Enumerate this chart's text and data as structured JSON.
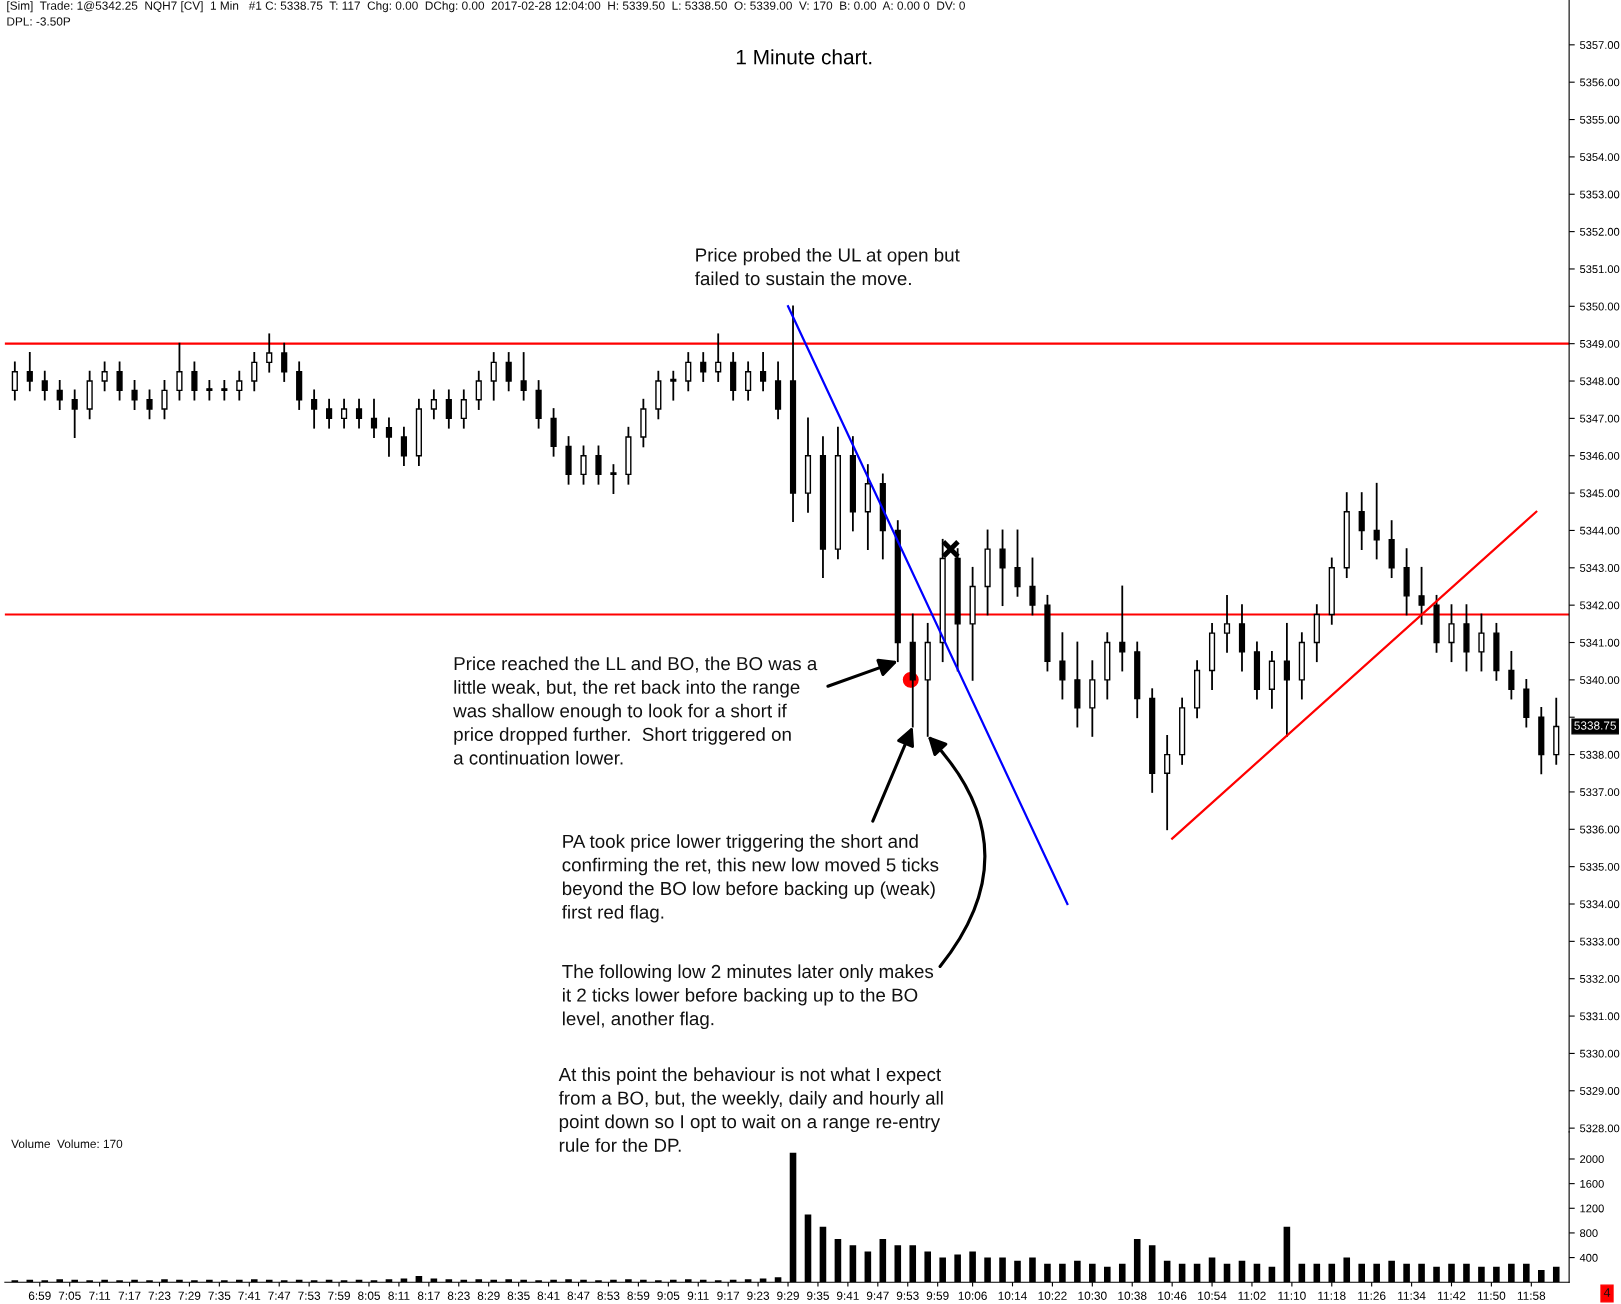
{
  "chart_data": [
    {
      "type": "candlestick",
      "title": "1 Minute chart.",
      "color": "#000000",
      "x": [
        6.9,
        6.95,
        7,
        7.05,
        7.1,
        7.15,
        7.2,
        7.25,
        7.3,
        7.35,
        7.4,
        7.45,
        7.5,
        7.55,
        7.6,
        7.65,
        7.7,
        7.75,
        7.8,
        7.85,
        7.9,
        7.95,
        8,
        8.05,
        8.1,
        8.15,
        8.2,
        8.25,
        8.3,
        8.35,
        8.4,
        8.45,
        8.5,
        8.55,
        8.6,
        8.65,
        8.7,
        8.75,
        8.8,
        8.85,
        8.9,
        8.95,
        9,
        9.05,
        9.1,
        9.15,
        9.2,
        9.25,
        9.3,
        9.35,
        9.4,
        9.45,
        9.5,
        9.55,
        9.6,
        9.65,
        9.7,
        9.75,
        9.8,
        9.85,
        9.9,
        9.95,
        10,
        10.05,
        10.1,
        10.15,
        10.2,
        10.25,
        10.3,
        10.35,
        10.4,
        10.45,
        10.5,
        10.55,
        10.6,
        10.65,
        10.7,
        10.75,
        10.8,
        10.85,
        10.9,
        10.95,
        11,
        11.05,
        11.1,
        11.15,
        11.2,
        11.25,
        11.3,
        11.35,
        11.4,
        11.45,
        11.5,
        11.55,
        11.6,
        11.65,
        11.7,
        11.75,
        11.8,
        11.85,
        11.9,
        11.95,
        12,
        12.05
      ],
      "ohlc": [
        [
          5347.75,
          5348.5,
          5347.5,
          5348.25
        ],
        [
          5348.25,
          5348.75,
          5347.75,
          5348.0
        ],
        [
          5348.0,
          5348.25,
          5347.5,
          5347.75
        ],
        [
          5347.75,
          5348.0,
          5347.25,
          5347.5
        ],
        [
          5347.5,
          5347.75,
          5346.5,
          5347.25
        ],
        [
          5347.25,
          5348.25,
          5347.0,
          5348.0
        ],
        [
          5348.0,
          5348.5,
          5347.75,
          5348.25
        ],
        [
          5348.25,
          5348.5,
          5347.5,
          5347.75
        ],
        [
          5347.75,
          5348.0,
          5347.25,
          5347.5
        ],
        [
          5347.5,
          5347.75,
          5347.0,
          5347.25
        ],
        [
          5347.25,
          5348.0,
          5347.0,
          5347.75
        ],
        [
          5347.75,
          5349.0,
          5347.5,
          5348.25
        ],
        [
          5348.25,
          5348.5,
          5347.5,
          5347.75
        ],
        [
          5347.75,
          5348.0,
          5347.5,
          5347.75
        ],
        [
          5347.75,
          5348.0,
          5347.5,
          5347.75
        ],
        [
          5347.75,
          5348.25,
          5347.5,
          5348.0
        ],
        [
          5348.0,
          5348.75,
          5347.75,
          5348.5
        ],
        [
          5348.5,
          5349.25,
          5348.25,
          5348.75
        ],
        [
          5348.75,
          5349.0,
          5348.0,
          5348.25
        ],
        [
          5348.25,
          5348.5,
          5347.25,
          5347.5
        ],
        [
          5347.5,
          5347.75,
          5346.75,
          5347.25
        ],
        [
          5347.25,
          5347.5,
          5346.75,
          5347.0
        ],
        [
          5347.0,
          5347.5,
          5346.75,
          5347.25
        ],
        [
          5347.25,
          5347.5,
          5346.75,
          5347.0
        ],
        [
          5347.0,
          5347.5,
          5346.5,
          5346.75
        ],
        [
          5346.75,
          5347.0,
          5346.0,
          5346.5
        ],
        [
          5346.5,
          5346.75,
          5345.75,
          5346.0
        ],
        [
          5346.0,
          5347.5,
          5345.75,
          5347.25
        ],
        [
          5347.25,
          5347.75,
          5347.0,
          5347.5
        ],
        [
          5347.5,
          5347.75,
          5346.75,
          5347.0
        ],
        [
          5347.0,
          5347.75,
          5346.75,
          5347.5
        ],
        [
          5347.5,
          5348.25,
          5347.25,
          5348.0
        ],
        [
          5348.0,
          5348.75,
          5347.5,
          5348.5
        ],
        [
          5348.5,
          5348.75,
          5347.75,
          5348.0
        ],
        [
          5348.0,
          5348.75,
          5347.5,
          5347.75
        ],
        [
          5347.75,
          5348.0,
          5346.75,
          5347.0
        ],
        [
          5347.0,
          5347.25,
          5346.0,
          5346.25
        ],
        [
          5346.25,
          5346.5,
          5345.25,
          5345.5
        ],
        [
          5345.5,
          5346.25,
          5345.25,
          5346.0
        ],
        [
          5346.0,
          5346.25,
          5345.25,
          5345.5
        ],
        [
          5345.5,
          5345.75,
          5345.0,
          5345.5
        ],
        [
          5345.5,
          5346.75,
          5345.25,
          5346.5
        ],
        [
          5346.5,
          5347.5,
          5346.25,
          5347.25
        ],
        [
          5347.25,
          5348.25,
          5347.0,
          5348.0
        ],
        [
          5348.0,
          5348.25,
          5347.5,
          5348.0
        ],
        [
          5348.0,
          5348.75,
          5347.75,
          5348.5
        ],
        [
          5348.5,
          5348.75,
          5348.0,
          5348.25
        ],
        [
          5348.25,
          5349.25,
          5348.0,
          5348.5
        ],
        [
          5348.5,
          5348.75,
          5347.5,
          5347.75
        ],
        [
          5347.75,
          5348.5,
          5347.5,
          5348.25
        ],
        [
          5348.25,
          5348.75,
          5347.75,
          5348.0
        ],
        [
          5348.0,
          5348.5,
          5347.0,
          5347.25
        ],
        [
          5348.0,
          5350.0,
          5344.25,
          5345.0
        ],
        [
          5345.0,
          5347.0,
          5344.5,
          5346.0
        ],
        [
          5346.0,
          5346.5,
          5342.75,
          5343.5
        ],
        [
          5343.5,
          5346.75,
          5343.25,
          5346.0
        ],
        [
          5346.0,
          5346.5,
          5344.0,
          5344.5
        ],
        [
          5344.5,
          5345.75,
          5343.5,
          5345.25
        ],
        [
          5345.25,
          5345.5,
          5343.25,
          5344.0
        ],
        [
          5344.0,
          5344.25,
          5340.5,
          5341.0
        ],
        [
          5341.0,
          5341.75,
          5338.75,
          5340.0
        ],
        [
          5340.0,
          5341.5,
          5338.5,
          5341.0
        ],
        [
          5341.0,
          5343.75,
          5340.5,
          5343.25
        ],
        [
          5343.25,
          5343.5,
          5340.25,
          5341.5
        ],
        [
          5341.5,
          5343.0,
          5340.0,
          5342.5
        ],
        [
          5342.5,
          5344.0,
          5341.75,
          5343.5
        ],
        [
          5343.5,
          5344.0,
          5342.0,
          5343.0
        ],
        [
          5343.0,
          5344.0,
          5342.25,
          5342.5
        ],
        [
          5342.5,
          5343.25,
          5341.75,
          5342.0
        ],
        [
          5342.0,
          5342.25,
          5340.25,
          5340.5
        ],
        [
          5340.5,
          5341.25,
          5339.5,
          5340.0
        ],
        [
          5340.0,
          5341.0,
          5338.75,
          5339.25
        ],
        [
          5339.25,
          5340.5,
          5338.5,
          5340.0
        ],
        [
          5340.0,
          5341.25,
          5339.5,
          5341.0
        ],
        [
          5341.0,
          5342.5,
          5340.25,
          5340.75
        ],
        [
          5340.75,
          5341.0,
          5339.0,
          5339.5
        ],
        [
          5339.5,
          5339.75,
          5337.0,
          5337.5
        ],
        [
          5337.5,
          5338.5,
          5336.0,
          5338.0
        ],
        [
          5338.0,
          5339.5,
          5337.75,
          5339.25
        ],
        [
          5339.25,
          5340.5,
          5339.0,
          5340.25
        ],
        [
          5340.25,
          5341.5,
          5339.75,
          5341.25
        ],
        [
          5341.25,
          5342.25,
          5340.75,
          5341.5
        ],
        [
          5341.5,
          5342.0,
          5340.25,
          5340.75
        ],
        [
          5340.75,
          5341.0,
          5339.5,
          5339.75
        ],
        [
          5339.75,
          5340.75,
          5339.25,
          5340.5
        ],
        [
          5340.5,
          5341.5,
          5338.5,
          5340.0
        ],
        [
          5340.0,
          5341.25,
          5339.5,
          5341.0
        ],
        [
          5341.0,
          5342.0,
          5340.5,
          5341.75
        ],
        [
          5341.75,
          5343.25,
          5341.5,
          5343.0
        ],
        [
          5343.0,
          5345.0,
          5342.75,
          5344.5
        ],
        [
          5344.5,
          5345.0,
          5343.5,
          5344.0
        ],
        [
          5344.0,
          5345.25,
          5343.25,
          5343.75
        ],
        [
          5343.75,
          5344.25,
          5342.75,
          5343.0
        ],
        [
          5343.0,
          5343.5,
          5341.75,
          5342.25
        ],
        [
          5342.25,
          5343.0,
          5341.5,
          5342.0
        ],
        [
          5342.0,
          5342.25,
          5340.75,
          5341.0
        ],
        [
          5341.0,
          5342.0,
          5340.5,
          5341.5
        ],
        [
          5341.5,
          5342.0,
          5340.25,
          5340.75
        ],
        [
          5340.75,
          5341.75,
          5340.25,
          5341.25
        ],
        [
          5341.25,
          5341.5,
          5340.0,
          5340.25
        ],
        [
          5340.25,
          5340.75,
          5339.5,
          5339.75
        ],
        [
          5339.75,
          5340.0,
          5338.75,
          5339.0
        ],
        [
          5339.0,
          5339.25,
          5337.5,
          5338.0
        ],
        [
          5338.0,
          5339.5,
          5337.75,
          5338.75
        ]
      ],
      "series": [
        {
          "type": "line",
          "x": [
            9.4833,
            10.4167
          ],
          "values": [
            5350,
            5334
          ],
          "color": "#0000ff"
        },
        {
          "type": "line",
          "x": [
            10.7667,
            11.9833
          ],
          "values": [
            5335.75,
            5344.5
          ],
          "color": "#ff0000"
        },
        {
          "type": "scatter",
          "x": [
            9.8933
          ],
          "values": [
            5340.0
          ],
          "color": "#ff0000",
          "marker": "circle"
        },
        {
          "type": "scatter",
          "x": [
            10.0267
          ],
          "values": [
            5343.5
          ],
          "color": "#000000",
          "marker": "cross"
        }
      ],
      "ref_lines": [
        {
          "axis": "y",
          "value": 5349.0,
          "color": "#ff0000"
        },
        {
          "axis": "y",
          "value": 5341.75,
          "color": "#ff0000"
        }
      ],
      "xlim": [
        6.8667,
        12.093
      ],
      "ylim": [
        5327.9,
        5358.2
      ],
      "yticks": [
        {
          "value": 5328,
          "label": "5328.00"
        },
        {
          "value": 5329,
          "label": "5329.00"
        },
        {
          "value": 5330,
          "label": "5330.00"
        },
        {
          "value": 5331,
          "label": "5331.00"
        },
        {
          "value": 5332,
          "label": "5332.00"
        },
        {
          "value": 5333,
          "label": "5333.00"
        },
        {
          "value": 5334,
          "label": "5334.00"
        },
        {
          "value": 5335,
          "label": "5335.00"
        },
        {
          "value": 5336,
          "label": "5336.00"
        },
        {
          "value": 5337,
          "label": "5337.00"
        },
        {
          "value": 5338,
          "label": "5338.00"
        },
        {
          "value": 5339,
          "label": null
        },
        {
          "value": 5340,
          "label": "5340.00"
        },
        {
          "value": 5341,
          "label": "5341.00"
        },
        {
          "value": 5342,
          "label": "5342.00"
        },
        {
          "value": 5343,
          "label": "5343.00"
        },
        {
          "value": 5344,
          "label": "5344.00"
        },
        {
          "value": 5345,
          "label": "5345.00"
        },
        {
          "value": 5346,
          "label": "5346.00"
        },
        {
          "value": 5347,
          "label": "5347.00"
        },
        {
          "value": 5348,
          "label": "5348.00"
        },
        {
          "value": 5349,
          "label": "5349.00"
        },
        {
          "value": 5350,
          "label": "5350.00"
        },
        {
          "value": 5351,
          "label": "5351.00"
        },
        {
          "value": 5352,
          "label": "5352.00"
        },
        {
          "value": 5353,
          "label": "5353.00"
        },
        {
          "value": 5354,
          "label": "5354.00"
        },
        {
          "value": 5355,
          "label": "5355.00"
        },
        {
          "value": 5356,
          "label": "5356.00"
        },
        {
          "value": 5357,
          "label": "5357.00"
        }
      ],
      "tick_labels": "y",
      "annotations": [
        "[Sim]  Trade: 1@5342.25  NQH7 [CV]  1 Min   #1 C: 5338.75  T: 117  Chg: 0.00  DChg: 0.00  2017-02-28 12:04:00  H: 5339.50  L: 5338.50  O: 5339.00  V: 170  B: 0.00  A: 0.00 0  DV: 0",
        "DPL: -3.50P",
        {
          "text": "Price probed the UL at open but\nfailed to sustain the move.",
          "x": 9.4833,
          "y": 5350
        },
        {
          "text": "Price reached the LL and BO, the BO was a\nlittle weak, but, the ret back into the range\nwas shallow enough to look for a short if\nprice dropped further.  Short triggered on\na continuation lower.",
          "x": 9.85,
          "y": 5340.5
        },
        {
          "text": "PA took price lower triggering the short and\nconfirming the ret, this new low moved 5 ticks\nbeyond the BO low before backing up (weak)\nfirst red flag.",
          "x": 9.9,
          "y": 5338.75
        },
        {
          "text": "The following low 2 minutes later only makes\nit 2 ticks lower before backing up to the BO\nlevel, another flag.",
          "x": 9.95,
          "y": 5338.5
        },
        "At this point the behaviour is not what I expect\nfrom a BO, but, the weekly, daily and hourly all\npoint down so I opt to wait on a range re-entry\nrule for the DP.",
        {
          "text": "5338.75",
          "x": 12.05,
          "y": 5338.75
        }
      ]
    },
    {
      "type": "bar",
      "color": "#000000",
      "x": [
        6.9,
        6.95,
        7,
        7.05,
        7.1,
        7.15,
        7.2,
        7.25,
        7.3,
        7.35,
        7.4,
        7.45,
        7.5,
        7.55,
        7.6,
        7.65,
        7.7,
        7.75,
        7.8,
        7.85,
        7.9,
        7.95,
        8,
        8.05,
        8.1,
        8.15,
        8.2,
        8.25,
        8.3,
        8.35,
        8.4,
        8.45,
        8.5,
        8.55,
        8.6,
        8.65,
        8.7,
        8.75,
        8.8,
        8.85,
        8.9,
        8.95,
        9,
        9.05,
        9.1,
        9.15,
        9.2,
        9.25,
        9.3,
        9.35,
        9.4,
        9.45,
        9.5,
        9.55,
        9.6,
        9.65,
        9.7,
        9.75,
        9.8,
        9.85,
        9.9,
        9.95,
        10,
        10.05,
        10.1,
        10.15,
        10.2,
        10.25,
        10.3,
        10.35,
        10.4,
        10.45,
        10.5,
        10.55,
        10.6,
        10.65,
        10.7,
        10.75,
        10.8,
        10.85,
        10.9,
        10.95,
        11,
        11.05,
        11.1,
        11.15,
        11.2,
        11.25,
        11.3,
        11.35,
        11.4,
        11.45,
        11.5,
        11.55,
        11.6,
        11.65,
        11.7,
        11.75,
        11.8,
        11.85,
        11.9,
        11.95,
        12,
        12.05
      ],
      "values": [
        30,
        40,
        30,
        50,
        40,
        30,
        40,
        30,
        40,
        30,
        50,
        40,
        30,
        40,
        30,
        40,
        50,
        40,
        30,
        40,
        30,
        40,
        30,
        40,
        30,
        50,
        60,
        100,
        60,
        50,
        40,
        50,
        40,
        50,
        40,
        30,
        40,
        50,
        40,
        30,
        40,
        50,
        40,
        30,
        40,
        50,
        40,
        30,
        40,
        50,
        60,
        80,
        2100,
        1100,
        900,
        700,
        600,
        500,
        700,
        600,
        600,
        500,
        400,
        450,
        500,
        400,
        400,
        350,
        400,
        300,
        300,
        350,
        300,
        250,
        300,
        700,
        600,
        350,
        300,
        300,
        400,
        300,
        350,
        300,
        250,
        900,
        300,
        300,
        300,
        400,
        300,
        300,
        350,
        300,
        300,
        250,
        300,
        300,
        250,
        250,
        300,
        300,
        200,
        250
      ],
      "xlim": [
        6.8667,
        12.093
      ],
      "ylim": [
        0,
        2440
      ],
      "yticks": [
        400,
        800,
        1200,
        1600,
        2000
      ],
      "xticks": [
        {
          "value": 6.9833,
          "label": "6:59"
        },
        {
          "value": 7.0833,
          "label": "7:05"
        },
        {
          "value": 7.1833,
          "label": "7:11"
        },
        {
          "value": 7.2833,
          "label": "7:17"
        },
        {
          "value": 7.3833,
          "label": "7:23"
        },
        {
          "value": 7.4833,
          "label": "7:29"
        },
        {
          "value": 7.5833,
          "label": "7:35"
        },
        {
          "value": 7.6833,
          "label": "7:41"
        },
        {
          "value": 7.7833,
          "label": "7:47"
        },
        {
          "value": 7.8833,
          "label": "7:53"
        },
        {
          "value": 7.9833,
          "label": "7:59"
        },
        {
          "value": 8.0833,
          "label": "8:05"
        },
        {
          "value": 8.1833,
          "label": "8:11"
        },
        {
          "value": 8.2833,
          "label": "8:17"
        },
        {
          "value": 8.3833,
          "label": "8:23"
        },
        {
          "value": 8.4833,
          "label": "8:29"
        },
        {
          "value": 8.5833,
          "label": "8:35"
        },
        {
          "value": 8.6833,
          "label": "8:41"
        },
        {
          "value": 8.7833,
          "label": "8:47"
        },
        {
          "value": 8.8833,
          "label": "8:53"
        },
        {
          "value": 8.9833,
          "label": "8:59"
        },
        {
          "value": 9.0833,
          "label": "9:05"
        },
        {
          "value": 9.1833,
          "label": "9:11"
        },
        {
          "value": 9.2833,
          "label": "9:17"
        },
        {
          "value": 9.3833,
          "label": "9:23"
        },
        {
          "value": 9.4833,
          "label": "9:29"
        },
        {
          "value": 9.5833,
          "label": "9:35"
        },
        {
          "value": 9.6833,
          "label": "9:41"
        },
        {
          "value": 9.7833,
          "label": "9:47"
        },
        {
          "value": 9.8833,
          "label": "9:53"
        },
        {
          "value": 9.9833,
          "label": "9:59"
        },
        {
          "value": 10.1,
          "label": "10:06"
        },
        {
          "value": 10.2333,
          "label": "10:14"
        },
        {
          "value": 10.3667,
          "label": "10:22"
        },
        {
          "value": 10.5,
          "label": "10:30"
        },
        {
          "value": 10.6333,
          "label": "10:38"
        },
        {
          "value": 10.7667,
          "label": "10:46"
        },
        {
          "value": 10.9,
          "label": "10:54"
        },
        {
          "value": 11.0333,
          "label": "11:02"
        },
        {
          "value": 11.1667,
          "label": "11:10"
        },
        {
          "value": 11.3,
          "label": "11:18"
        },
        {
          "value": 11.4333,
          "label": "11:26"
        },
        {
          "value": 11.5667,
          "label": "11:34"
        },
        {
          "value": 11.7,
          "label": "11:42"
        },
        {
          "value": 11.8333,
          "label": "11:50"
        },
        {
          "value": 11.9667,
          "label": "11:58"
        }
      ],
      "annotations": [
        "Volume  Volume: 170",
        "4"
      ]
    }
  ]
}
